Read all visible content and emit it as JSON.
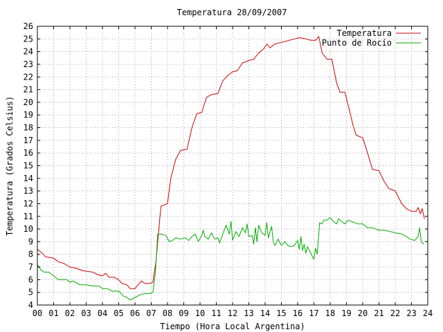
{
  "chart_data": {
    "type": "line",
    "title": "Temperatura 28/09/2007",
    "xlabel": "Tiempo (Hora Local Argentina)",
    "ylabel": "Temperatura (Grados Celsius)",
    "xlim": [
      0,
      24
    ],
    "ylim": [
      4,
      26
    ],
    "grid": true,
    "legend_position": "top-right",
    "x_ticks": [
      "00",
      "01",
      "02",
      "03",
      "04",
      "05",
      "06",
      "07",
      "08",
      "09",
      "10",
      "11",
      "12",
      "13",
      "14",
      "15",
      "16",
      "17",
      "18",
      "19",
      "20",
      "21",
      "22",
      "23",
      "24"
    ],
    "y_ticks": [
      "4",
      "5",
      "6",
      "7",
      "8",
      "9",
      "10",
      "11",
      "12",
      "13",
      "14",
      "15",
      "16",
      "17",
      "18",
      "19",
      "20",
      "21",
      "22",
      "23",
      "24",
      "25",
      "26"
    ],
    "series": [
      {
        "name": "Temperatura",
        "color": "#cc0000",
        "points": [
          [
            0.0,
            8.4
          ],
          [
            0.3,
            8.1
          ],
          [
            0.5,
            7.8
          ],
          [
            1.0,
            7.7
          ],
          [
            1.3,
            7.4
          ],
          [
            1.6,
            7.3
          ],
          [
            2.0,
            7.0
          ],
          [
            2.4,
            6.9
          ],
          [
            2.8,
            6.7
          ],
          [
            3.4,
            6.6
          ],
          [
            3.7,
            6.4
          ],
          [
            4.0,
            6.3
          ],
          [
            4.2,
            6.5
          ],
          [
            4.4,
            6.2
          ],
          [
            4.7,
            6.2
          ],
          [
            5.0,
            6.0
          ],
          [
            5.2,
            5.7
          ],
          [
            5.5,
            5.6
          ],
          [
            5.7,
            5.3
          ],
          [
            6.0,
            5.3
          ],
          [
            6.2,
            5.6
          ],
          [
            6.4,
            5.9
          ],
          [
            6.6,
            5.7
          ],
          [
            6.9,
            5.7
          ],
          [
            7.1,
            5.8
          ],
          [
            7.3,
            7.5
          ],
          [
            7.5,
            10.5
          ],
          [
            7.6,
            11.8
          ],
          [
            7.8,
            11.9
          ],
          [
            8.0,
            12.0
          ],
          [
            8.2,
            14.0
          ],
          [
            8.5,
            15.5
          ],
          [
            8.8,
            16.2
          ],
          [
            9.2,
            16.3
          ],
          [
            9.5,
            18.0
          ],
          [
            9.8,
            19.1
          ],
          [
            10.1,
            19.2
          ],
          [
            10.4,
            20.4
          ],
          [
            10.7,
            20.6
          ],
          [
            11.1,
            20.7
          ],
          [
            11.4,
            21.7
          ],
          [
            11.7,
            22.1
          ],
          [
            12.0,
            22.4
          ],
          [
            12.3,
            22.5
          ],
          [
            12.6,
            23.1
          ],
          [
            13.0,
            23.3
          ],
          [
            13.3,
            23.4
          ],
          [
            13.6,
            23.9
          ],
          [
            13.9,
            24.2
          ],
          [
            14.1,
            24.6
          ],
          [
            14.3,
            24.3
          ],
          [
            14.6,
            24.6
          ],
          [
            14.9,
            24.7
          ],
          [
            15.2,
            24.8
          ],
          [
            15.5,
            24.9
          ],
          [
            15.8,
            25.0
          ],
          [
            16.1,
            25.1
          ],
          [
            16.5,
            25.0
          ],
          [
            16.8,
            24.9
          ],
          [
            17.1,
            24.9
          ],
          [
            17.3,
            25.2
          ],
          [
            17.5,
            23.9
          ],
          [
            17.8,
            23.4
          ],
          [
            18.1,
            23.4
          ],
          [
            18.4,
            21.5
          ],
          [
            18.6,
            20.8
          ],
          [
            18.9,
            20.8
          ],
          [
            19.2,
            19.3
          ],
          [
            19.4,
            18.2
          ],
          [
            19.6,
            17.4
          ],
          [
            20.0,
            17.2
          ],
          [
            20.3,
            16.0
          ],
          [
            20.6,
            14.7
          ],
          [
            21.0,
            14.6
          ],
          [
            21.3,
            13.8
          ],
          [
            21.6,
            13.2
          ],
          [
            22.0,
            13.0
          ],
          [
            22.4,
            12.0
          ],
          [
            22.7,
            11.6
          ],
          [
            23.0,
            11.4
          ],
          [
            23.3,
            11.4
          ],
          [
            23.4,
            11.7
          ],
          [
            23.55,
            11.2
          ],
          [
            23.65,
            11.6
          ],
          [
            23.8,
            10.8
          ]
        ]
      },
      {
        "name": "Punto de Rocío",
        "color": "#00aa00",
        "points": [
          [
            0.0,
            7.2
          ],
          [
            0.2,
            6.8
          ],
          [
            0.4,
            6.6
          ],
          [
            0.7,
            6.6
          ],
          [
            1.0,
            6.3
          ],
          [
            1.3,
            6.0
          ],
          [
            1.8,
            6.0
          ],
          [
            2.0,
            5.8
          ],
          [
            2.2,
            5.9
          ],
          [
            2.6,
            5.6
          ],
          [
            3.0,
            5.6
          ],
          [
            3.4,
            5.5
          ],
          [
            3.8,
            5.5
          ],
          [
            4.0,
            5.3
          ],
          [
            4.3,
            5.3
          ],
          [
            4.6,
            5.1
          ],
          [
            5.0,
            5.1
          ],
          [
            5.3,
            4.7
          ],
          [
            5.5,
            4.6
          ],
          [
            5.7,
            4.4
          ],
          [
            6.0,
            4.6
          ],
          [
            6.3,
            4.8
          ],
          [
            6.6,
            4.9
          ],
          [
            6.9,
            4.9
          ],
          [
            7.1,
            5.0
          ],
          [
            7.25,
            6.5
          ],
          [
            7.4,
            9.6
          ],
          [
            7.6,
            9.6
          ],
          [
            7.9,
            9.5
          ],
          [
            8.1,
            9.0
          ],
          [
            8.3,
            9.1
          ],
          [
            8.5,
            9.3
          ],
          [
            8.8,
            9.2
          ],
          [
            9.1,
            9.3
          ],
          [
            9.3,
            9.1
          ],
          [
            9.5,
            9.4
          ],
          [
            9.7,
            9.6
          ],
          [
            9.9,
            9.0
          ],
          [
            10.1,
            9.5
          ],
          [
            10.2,
            9.9
          ],
          [
            10.3,
            9.4
          ],
          [
            10.5,
            9.2
          ],
          [
            10.7,
            9.7
          ],
          [
            10.9,
            9.2
          ],
          [
            11.1,
            9.3
          ],
          [
            11.2,
            8.9
          ],
          [
            11.4,
            9.6
          ],
          [
            11.6,
            10.3
          ],
          [
            11.8,
            9.6
          ],
          [
            11.9,
            10.6
          ],
          [
            12.0,
            9.1
          ],
          [
            12.2,
            9.8
          ],
          [
            12.4,
            9.4
          ],
          [
            12.6,
            10.1
          ],
          [
            12.8,
            9.7
          ],
          [
            12.9,
            10.4
          ],
          [
            13.0,
            9.4
          ],
          [
            13.2,
            9.5
          ],
          [
            13.3,
            8.8
          ],
          [
            13.4,
            10.1
          ],
          [
            13.5,
            9.0
          ],
          [
            13.6,
            10.3
          ],
          [
            13.8,
            9.7
          ],
          [
            14.0,
            9.5
          ],
          [
            14.1,
            10.5
          ],
          [
            14.2,
            9.3
          ],
          [
            14.4,
            10.2
          ],
          [
            14.5,
            9.0
          ],
          [
            14.6,
            8.7
          ],
          [
            14.8,
            9.2
          ],
          [
            15.0,
            8.7
          ],
          [
            15.2,
            9.0
          ],
          [
            15.4,
            8.7
          ],
          [
            15.6,
            8.6
          ],
          [
            15.8,
            8.7
          ],
          [
            16.0,
            9.1
          ],
          [
            16.1,
            8.4
          ],
          [
            16.2,
            9.4
          ],
          [
            16.3,
            8.3
          ],
          [
            16.4,
            8.8
          ],
          [
            16.5,
            8.1
          ],
          [
            16.6,
            8.6
          ],
          [
            16.8,
            8.1
          ],
          [
            17.0,
            7.6
          ],
          [
            17.1,
            8.5
          ],
          [
            17.2,
            8.0
          ],
          [
            17.3,
            9.6
          ],
          [
            17.35,
            10.5
          ],
          [
            17.5,
            10.4
          ],
          [
            17.6,
            10.7
          ],
          [
            17.8,
            10.7
          ],
          [
            18.0,
            10.9
          ],
          [
            18.2,
            10.6
          ],
          [
            18.4,
            10.4
          ],
          [
            18.5,
            10.8
          ],
          [
            18.7,
            10.6
          ],
          [
            18.9,
            10.4
          ],
          [
            19.1,
            10.7
          ],
          [
            19.3,
            10.6
          ],
          [
            19.5,
            10.5
          ],
          [
            19.7,
            10.4
          ],
          [
            20.0,
            10.4
          ],
          [
            20.3,
            10.1
          ],
          [
            20.6,
            10.1
          ],
          [
            21.0,
            9.9
          ],
          [
            21.3,
            9.9
          ],
          [
            21.7,
            9.8
          ],
          [
            22.0,
            9.7
          ],
          [
            22.4,
            9.6
          ],
          [
            22.7,
            9.4
          ],
          [
            22.9,
            9.2
          ],
          [
            23.2,
            9.1
          ],
          [
            23.4,
            9.4
          ],
          [
            23.5,
            10.1
          ],
          [
            23.6,
            9.0
          ],
          [
            23.75,
            8.8
          ]
        ]
      }
    ]
  }
}
